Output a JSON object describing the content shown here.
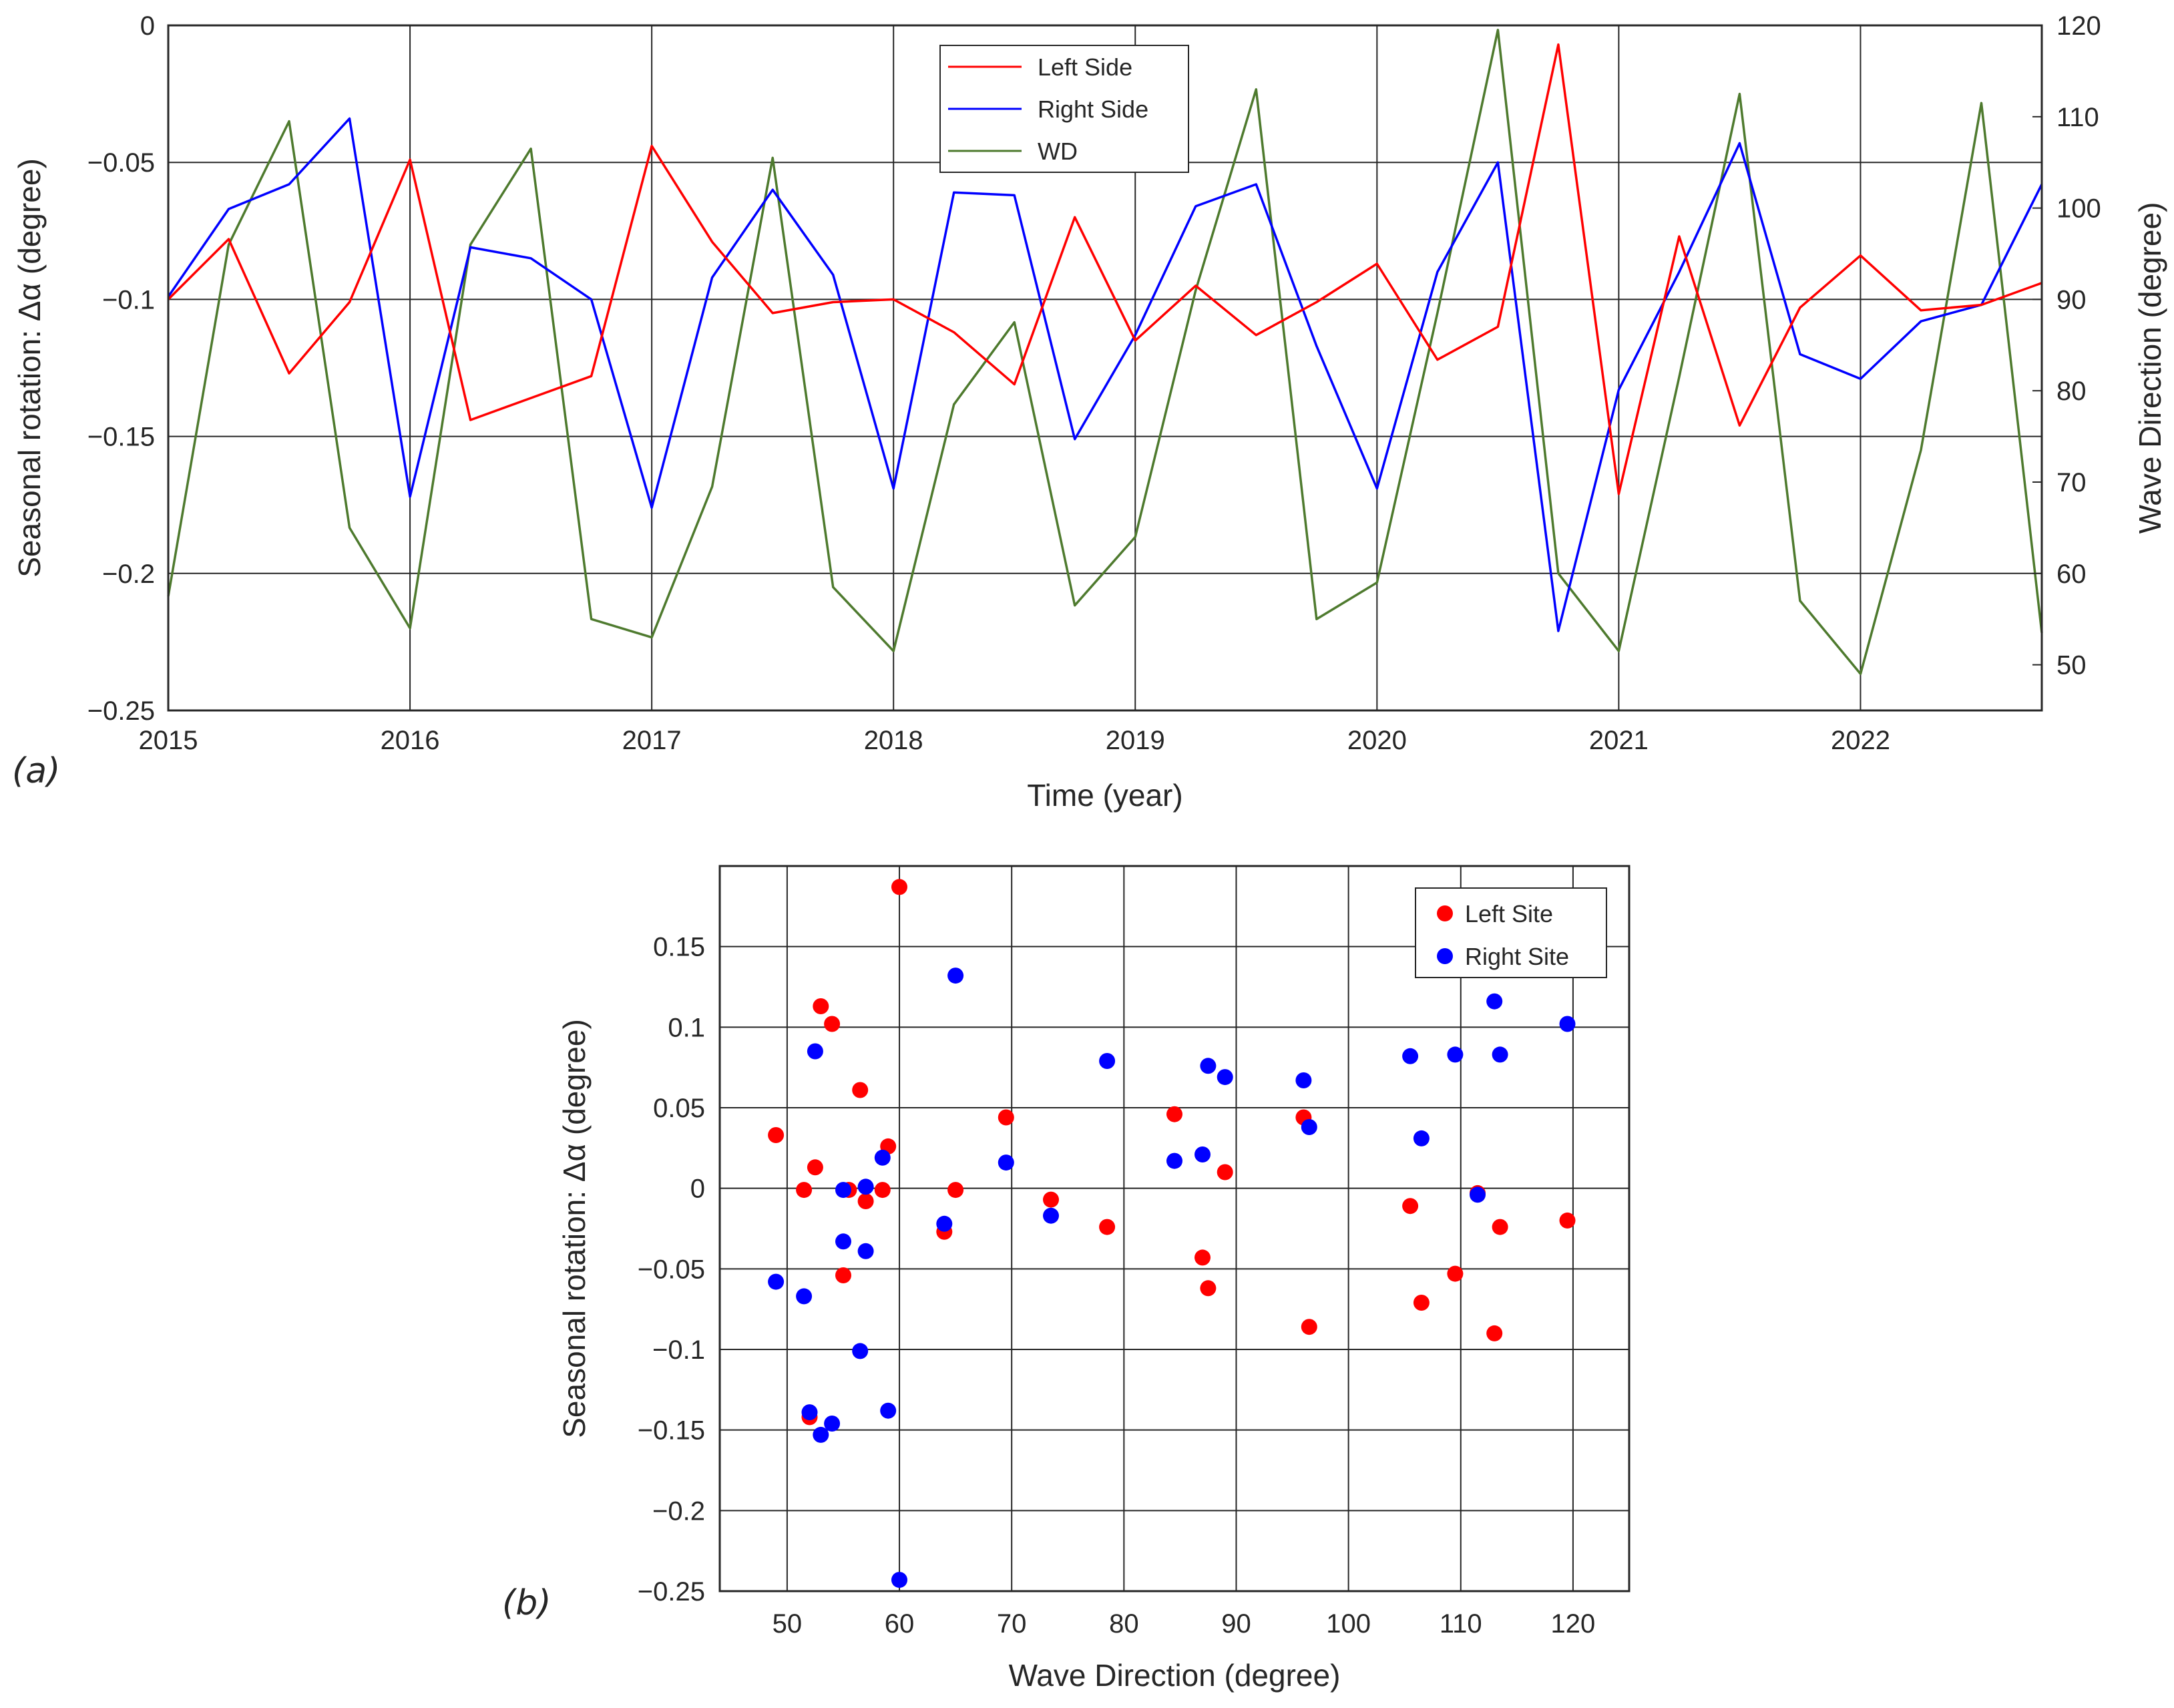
{
  "colors": {
    "left": "#ff0000",
    "right": "#0000ff",
    "wd": "#4e7a2e",
    "axis": "#262626"
  },
  "chart_data": [
    {
      "panel_label": "(a)",
      "type": "line",
      "xlabel": "Time (year)",
      "ylabel": "Seasonal rotation: Δα (degree)",
      "y2label": "Wave Direction (degree)",
      "xlim": [
        2015,
        2022.75
      ],
      "ylim": [
        -0.25,
        0
      ],
      "y2lim": [
        45,
        120
      ],
      "xticks": [
        "2015",
        "2016",
        "2017",
        "2018",
        "2019",
        "2020",
        "2021",
        "2022"
      ],
      "yticks": [
        "−0.25",
        "−0.2",
        "−0.15",
        "−0.1",
        "−0.05",
        "0"
      ],
      "y2ticks": [
        "50",
        "60",
        "70",
        "80",
        "90",
        "100",
        "110",
        "120"
      ],
      "grid": true,
      "legend": "top-center",
      "x": [
        2015,
        2015.25,
        2015.5,
        2015.75,
        2016,
        2016.25,
        2016.5,
        2016.75,
        2017,
        2017.25,
        2017.5,
        2017.75,
        2018,
        2018.25,
        2018.5,
        2018.75,
        2019,
        2019.25,
        2019.5,
        2019.75,
        2020,
        2020.25,
        2020.5,
        2020.75,
        2021,
        2021.25,
        2021.5,
        2021.75,
        2022,
        2022.25,
        2022.5,
        2022.75
      ],
      "series": [
        {
          "name": "Left Side",
          "axis": "left",
          "values": [
            -0.1,
            -0.078,
            -0.127,
            -0.101,
            -0.049,
            -0.144,
            -0.136,
            -0.128,
            -0.044,
            -0.079,
            -0.105,
            -0.101,
            -0.1,
            -0.112,
            -0.131,
            -0.07,
            -0.115,
            -0.095,
            -0.113,
            -0.101,
            -0.087,
            -0.122,
            -0.11,
            -0.007,
            -0.171,
            -0.077,
            -0.146,
            -0.103,
            -0.084,
            -0.104,
            -0.102,
            -0.094
          ]
        },
        {
          "name": "Right Side",
          "axis": "left",
          "values": [
            -0.099,
            -0.067,
            -0.058,
            -0.034,
            -0.172,
            -0.081,
            -0.085,
            -0.1,
            -0.176,
            -0.092,
            -0.06,
            -0.091,
            -0.169,
            -0.061,
            -0.062,
            -0.151,
            -0.113,
            -0.066,
            -0.058,
            -0.117,
            -0.169,
            -0.09,
            -0.05,
            -0.221,
            -0.133,
            -0.09,
            -0.043,
            -0.12,
            -0.129,
            -0.108,
            -0.102,
            -0.058
          ]
        },
        {
          "name": "WD",
          "axis": "right",
          "values": [
            57.5,
            96,
            109.5,
            65,
            54,
            96,
            106.5,
            55,
            53,
            69.5,
            105.5,
            58.5,
            51.5,
            78.5,
            87.5,
            56.5,
            64,
            91,
            113,
            55,
            59,
            88.5,
            119.5,
            60,
            51.5,
            81.5,
            112.5,
            57,
            49,
            73.5,
            111.5,
            53.5
          ]
        }
      ]
    },
    {
      "panel_label": "(b)",
      "type": "scatter",
      "xlabel": "Wave Direction (degree)",
      "ylabel": "Seasonal rotation: Δα (degree)",
      "xlim": [
        44,
        125
      ],
      "ylim": [
        -0.25,
        0.2
      ],
      "xticks": [
        "50",
        "60",
        "70",
        "80",
        "90",
        "100",
        "110",
        "120"
      ],
      "yticks": [
        "−0.25",
        "−0.2",
        "−0.15",
        "−0.1",
        "−0.05",
        "0",
        "0.05",
        "0.1",
        "0.15"
      ],
      "grid": true,
      "legend": "top-right",
      "series": [
        {
          "name": "Left Site",
          "x": [
            49,
            51.5,
            52,
            52.5,
            53,
            54,
            55,
            55.5,
            56.5,
            57,
            58.5,
            59,
            60,
            64,
            65,
            69.5,
            73.5,
            78.5,
            84.5,
            87,
            87.5,
            89,
            96,
            96.5,
            105.5,
            106.5,
            109.5,
            111.5,
            113,
            113.5,
            119.5
          ],
          "y": [
            0.033,
            -0.001,
            -0.142,
            0.013,
            0.113,
            0.102,
            -0.054,
            -0.001,
            0.061,
            -0.008,
            -0.001,
            0.026,
            0.187,
            -0.027,
            -0.001,
            0.044,
            -0.007,
            -0.024,
            0.046,
            -0.043,
            -0.062,
            0.01,
            0.044,
            -0.086,
            -0.011,
            -0.071,
            -0.053,
            -0.003,
            -0.09,
            -0.024,
            -0.02
          ]
        },
        {
          "name": "Right Site",
          "x": [
            49,
            51.5,
            52,
            52.5,
            53,
            54,
            55,
            55,
            56.5,
            57,
            57,
            58.5,
            59,
            60,
            64,
            65,
            69.5,
            73.5,
            78.5,
            84.5,
            87,
            87.5,
            89,
            96,
            96.5,
            105.5,
            106.5,
            109.5,
            111.5,
            113,
            113.5,
            119.5
          ],
          "y": [
            -0.058,
            -0.067,
            -0.139,
            0.085,
            -0.153,
            -0.146,
            -0.001,
            -0.033,
            -0.101,
            -0.039,
            0.001,
            0.019,
            -0.138,
            -0.243,
            -0.022,
            0.132,
            0.016,
            -0.017,
            0.079,
            0.017,
            0.021,
            0.076,
            0.069,
            0.067,
            0.038,
            0.082,
            0.031,
            0.083,
            -0.004,
            0.116,
            0.083,
            0.102
          ]
        }
      ]
    }
  ]
}
